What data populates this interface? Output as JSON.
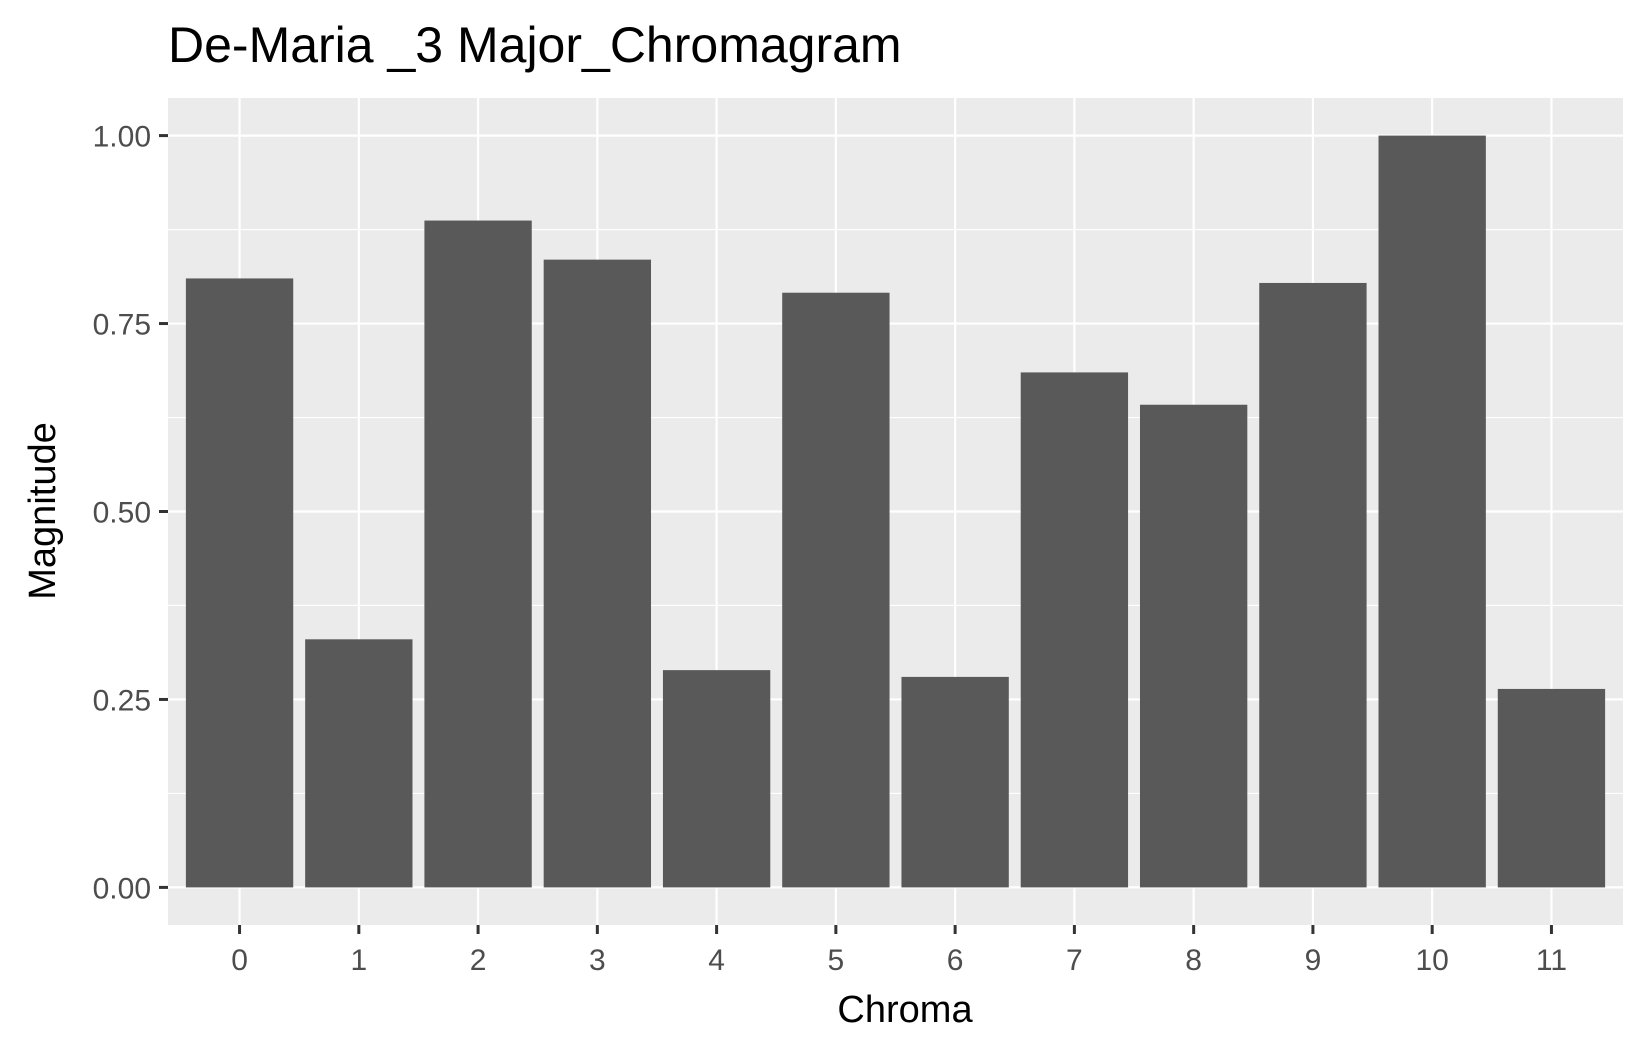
{
  "chart_data": {
    "type": "bar",
    "title": "De-Maria _3 Major_Chromagram",
    "xlabel": "Chroma",
    "ylabel": "Magnitude",
    "categories": [
      "0",
      "1",
      "2",
      "3",
      "4",
      "5",
      "6",
      "7",
      "8",
      "9",
      "10",
      "11"
    ],
    "values": [
      0.81,
      0.33,
      0.887,
      0.835,
      0.289,
      0.791,
      0.28,
      0.685,
      0.642,
      0.804,
      1.0,
      0.264
    ],
    "ylim": [
      -0.05,
      1.05
    ],
    "yticks": [
      0.0,
      0.25,
      0.5,
      0.75,
      1.0
    ],
    "ytick_labels": [
      "0.00",
      "0.25",
      "0.50",
      "0.75",
      "1.00"
    ],
    "grid": true,
    "bar_color": "#595959",
    "panel_color": "#ebebeb"
  }
}
